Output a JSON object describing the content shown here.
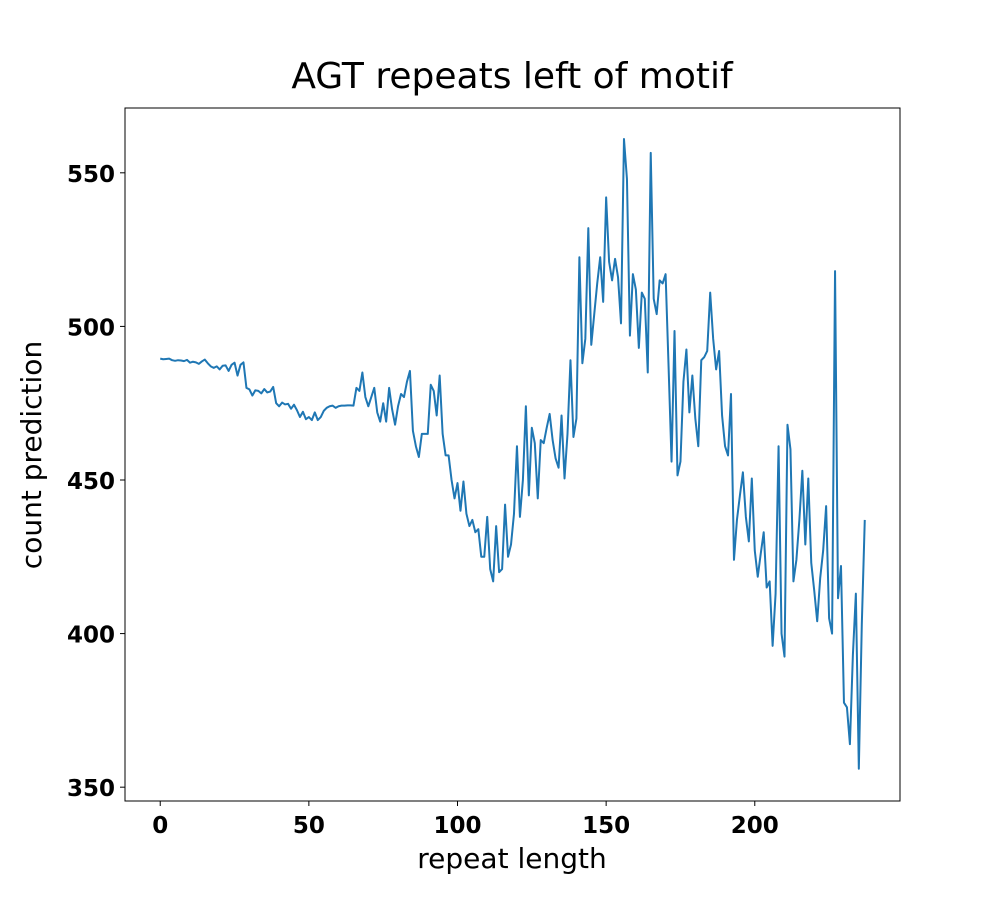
{
  "chart_data": {
    "type": "line",
    "title": "AGT repeats left of motif",
    "x_label": "repeat length",
    "y_label": "count prediction",
    "x": [
      0,
      1,
      2,
      3,
      4,
      5,
      6,
      7,
      8,
      9,
      10,
      11,
      12,
      13,
      14,
      15,
      16,
      17,
      18,
      19,
      20,
      21,
      22,
      23,
      24,
      25,
      26,
      27,
      28,
      29,
      30,
      31,
      32,
      33,
      34,
      35,
      36,
      37,
      38,
      39,
      40,
      41,
      42,
      43,
      44,
      45,
      46,
      47,
      48,
      49,
      50,
      51,
      52,
      53,
      54,
      55,
      56,
      57,
      58,
      59,
      60,
      61,
      62,
      63,
      64,
      65,
      66,
      67,
      68,
      69,
      70,
      71,
      72,
      73,
      74,
      75,
      76,
      77,
      78,
      79,
      80,
      81,
      82,
      83,
      84,
      85,
      86,
      87,
      88,
      89,
      90,
      91,
      92,
      93,
      94,
      95,
      96,
      97,
      98,
      99,
      100,
      101,
      102,
      103,
      104,
      105,
      106,
      107,
      108,
      109,
      110,
      111,
      112,
      113,
      114,
      115,
      116,
      117,
      118,
      119,
      120,
      121,
      122,
      123,
      124,
      125,
      126,
      127,
      128,
      129,
      130,
      131,
      132,
      133,
      134,
      135,
      136,
      137,
      138,
      139,
      140,
      141,
      142,
      143,
      144,
      145,
      146,
      147,
      148,
      149,
      150,
      151,
      152,
      153,
      154,
      155,
      156,
      157,
      158,
      159,
      160,
      161,
      162,
      163,
      164,
      165,
      166,
      167,
      168,
      169,
      170,
      171,
      172,
      173,
      174,
      175,
      176,
      177,
      178,
      179,
      180,
      181,
      182,
      183,
      184,
      185,
      186,
      187,
      188,
      189,
      190,
      191,
      192,
      193,
      194,
      195,
      196,
      197,
      198,
      199,
      200,
      201,
      202,
      203,
      204,
      205,
      206,
      207,
      208,
      209,
      210,
      211,
      212,
      213,
      214,
      215,
      216,
      217,
      218,
      219,
      220,
      221,
      222,
      223,
      224,
      225,
      226,
      227,
      228,
      229,
      230,
      231,
      232,
      233,
      234,
      235,
      236,
      237
    ],
    "series": [
      {
        "name": "count prediction",
        "color": "#1f77b4",
        "values": [
          489.5,
          489.3,
          489.4,
          489.5,
          489,
          488.8,
          489,
          488.9,
          488.7,
          489.1,
          488.2,
          488.5,
          488.3,
          487.8,
          488.6,
          489.2,
          488,
          487,
          486.5,
          487,
          486,
          487.2,
          487.3,
          485.5,
          487.5,
          488.2,
          484,
          487.5,
          488.3,
          480,
          479.5,
          477.5,
          479.2,
          479,
          478.2,
          479.6,
          478.5,
          478.8,
          480.3,
          475,
          474,
          475.2,
          474.6,
          474.8,
          473.2,
          474.5,
          472.7,
          470.5,
          472.2,
          469.8,
          470.5,
          469.5,
          472,
          469.5,
          470.5,
          472.5,
          473.5,
          474,
          474.2,
          473.5,
          474,
          474.2,
          474.2,
          474.3,
          474.3,
          474.2,
          480,
          479,
          485,
          477,
          474,
          477,
          480,
          472,
          469,
          475,
          469,
          480,
          473,
          468,
          474,
          478,
          477,
          482,
          485.5,
          466,
          461,
          457.5,
          465,
          465,
          465,
          481,
          479,
          471,
          484,
          465,
          458,
          458,
          450,
          444,
          449,
          440,
          449.5,
          439,
          435,
          437,
          433,
          434,
          425,
          425,
          438,
          421,
          417,
          435,
          420,
          421,
          442,
          425,
          429,
          439,
          461,
          438,
          450,
          474,
          445,
          467,
          462,
          444,
          463,
          462,
          467,
          471.5,
          463,
          457,
          454,
          471,
          450.5,
          465,
          489,
          464,
          470,
          522.5,
          488,
          496,
          532,
          494,
          504,
          514,
          522.5,
          508,
          542,
          521,
          515,
          522,
          516,
          501,
          561,
          548,
          497,
          517,
          512,
          493,
          511,
          509,
          485,
          556.5,
          509,
          504,
          515,
          514,
          517,
          487,
          456,
          498.5,
          451.5,
          456,
          482,
          492.5,
          472,
          484,
          470,
          461,
          489,
          490,
          492,
          511,
          496,
          486,
          492,
          471,
          461,
          458,
          478,
          424,
          437,
          445,
          452.5,
          438,
          430,
          450.5,
          427,
          418.5,
          426,
          433,
          415,
          417,
          396,
          413,
          461,
          400,
          392.5,
          468,
          460,
          417,
          424,
          437,
          453,
          429,
          450.5,
          423,
          414,
          404,
          418,
          427,
          441.5,
          405,
          400,
          518,
          411.5,
          422,
          377.5,
          376,
          364,
          393,
          413,
          356,
          403,
          437
        ]
      }
    ],
    "xlim": [
      -11.85,
      248.85
    ],
    "ylim": [
      345.5,
      571.1
    ],
    "xticks": [
      0,
      50,
      100,
      150,
      200
    ],
    "yticks": [
      350,
      400,
      450,
      500,
      550
    ]
  }
}
